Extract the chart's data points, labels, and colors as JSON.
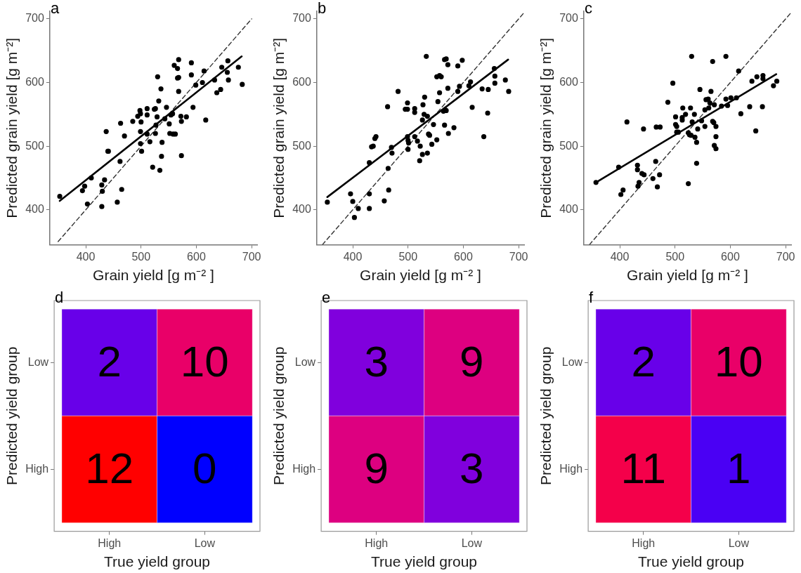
{
  "chart_data": [
    {
      "type": "scatter",
      "title": "a",
      "xlabel": "Grain yield [g m⁻² ]",
      "ylabel": "Predicted grain yield [g m⁻²]",
      "xlim": [
        335,
        710
      ],
      "ylim": [
        345,
        712
      ],
      "xticks": [
        400,
        500,
        600,
        700
      ],
      "yticks": [
        400,
        500,
        600,
        700
      ],
      "series": [
        {
          "type": "scatter",
          "color": "#000000",
          "marker": "circle",
          "x": [
            353,
            394,
            398,
            403,
            410,
            429,
            430,
            429,
            434,
            437,
            440,
            441,
            457,
            462,
            465,
            463,
            470,
            485,
            494,
            498,
            499,
            500,
            499,
            499,
            501,
            511,
            511,
            511,
            516,
            521,
            524,
            526,
            526,
            529,
            527,
            530,
            532,
            534,
            536,
            537,
            538,
            543,
            546,
            551,
            552,
            554,
            558,
            557,
            562,
            560,
            566,
            568,
            568,
            566,
            568,
            572,
            573,
            573,
            582,
            591,
            591,
            594,
            599,
            611,
            614,
            617,
            633,
            637,
            644,
            646,
            656,
            657,
            658,
            676,
            683
          ],
          "values": [
            421,
            430,
            437,
            409,
            450,
            405,
            429,
            439,
            447,
            523,
            492,
            492,
            412,
            476,
            432,
            536,
            516,
            539,
            547,
            556,
            551,
            538,
            523,
            504,
            492,
            559,
            549,
            519,
            507,
            467,
            558,
            559,
            520,
            546,
            533,
            609,
            571,
            462,
            590,
            484,
            506,
            543,
            561,
            535,
            520,
            549,
            519,
            551,
            519,
            627,
            622,
            636,
            608,
            607,
            586,
            547,
            539,
            485,
            546,
            631,
            612,
            561,
            596,
            600,
            618,
            541,
            604,
            584,
            589,
            624,
            616,
            634,
            604,
            624,
            597
          ]
        },
        {
          "type": "line",
          "color": "#000000",
          "line_style": "solid",
          "x": [
            353,
            682
          ],
          "values": [
            414,
            641
          ]
        },
        {
          "type": "line",
          "color": "#333333",
          "line_style": "dashed",
          "x": [
            350,
            700
          ],
          "values": [
            350,
            700
          ]
        }
      ]
    },
    {
      "type": "scatter",
      "title": "b",
      "xlabel": "Grain yield [g m⁻² ]",
      "ylabel": "Predicted grain yield [g m⁻²]",
      "xlim": [
        335,
        710
      ],
      "ylim": [
        345,
        712
      ],
      "xticks": [
        400,
        500,
        600,
        700
      ],
      "yticks": [
        400,
        500,
        600,
        700
      ],
      "series": [
        {
          "type": "scatter",
          "color": "#000000",
          "marker": "circle",
          "x": [
            354,
            396,
            400,
            403,
            410,
            430,
            430,
            430,
            434,
            437,
            440,
            442,
            457,
            463,
            464,
            465,
            470,
            471,
            482,
            495,
            499,
            499,
            499,
            500,
            500,
            501,
            512,
            512,
            512,
            517,
            522,
            521,
            526,
            526,
            527,
            529,
            530,
            533,
            535,
            535,
            537,
            539,
            543,
            546,
            552,
            552,
            554,
            557,
            560,
            557,
            564,
            567,
            566,
            569,
            566,
            569,
            572,
            572,
            573,
            583,
            590,
            590,
            593,
            598,
            610,
            613,
            616,
            634,
            637,
            644,
            645,
            656,
            657,
            657,
            676,
            682
          ],
          "values": [
            412,
            425,
            413,
            388,
            402,
            425,
            402,
            474,
            499,
            500,
            512,
            515,
            414,
            562,
            465,
            431,
            498,
            489,
            586,
            558,
            568,
            558,
            515,
            509,
            495,
            505,
            559,
            553,
            515,
            508,
            500,
            477,
            541,
            487,
            565,
            550,
            577,
            641,
            489,
            547,
            519,
            517,
            503,
            534,
            510,
            609,
            570,
            611,
            609,
            584,
            555,
            557,
            533,
            556,
            636,
            637,
            628,
            591,
            520,
            529,
            626,
            586,
            594,
            635,
            595,
            601,
            561,
            590,
            515,
            552,
            589,
            622,
            610,
            599,
            604,
            586
          ]
        },
        {
          "type": "line",
          "color": "#000000",
          "line_style": "solid",
          "x": [
            354,
            681
          ],
          "values": [
            420,
            636
          ]
        },
        {
          "type": "line",
          "color": "#333333",
          "line_style": "dashed",
          "x": [
            345,
            710
          ],
          "values": [
            345,
            710
          ]
        }
      ]
    },
    {
      "type": "scatter",
      "title": "c",
      "xlabel": "Grain yield [g m⁻² ]",
      "ylabel": "Predicted grain yield [g m⁻²]",
      "xlim": [
        335,
        710
      ],
      "ylim": [
        345,
        712
      ],
      "xticks": [
        400,
        500,
        600,
        700
      ],
      "yticks": [
        400,
        500,
        600,
        700
      ],
      "series": [
        {
          "type": "scatter",
          "color": "#000000",
          "marker": "circle",
          "x": [
            357,
            398,
            402,
            406,
            413,
            432,
            432,
            433,
            435,
            440,
            444,
            443,
            460,
            465,
            468,
            472,
            466,
            473,
            487,
            496,
            501,
            501,
            503,
            503,
            506,
            513,
            513,
            514,
            519,
            524,
            524,
            526,
            528,
            529,
            530,
            531,
            535,
            536,
            539,
            539,
            541,
            545,
            548,
            554,
            554,
            556,
            560,
            561,
            563,
            565,
            568,
            568,
            570,
            571,
            574,
            574,
            571,
            574,
            584,
            592,
            592,
            595,
            601,
            611,
            615,
            619,
            635,
            639,
            646,
            648,
            658,
            659,
            659,
            678,
            684
          ],
          "values": [
            443,
            467,
            424,
            431,
            538,
            470,
            463,
            437,
            443,
            457,
            455,
            527,
            449,
            476,
            436,
            455,
            530,
            530,
            569,
            599,
            546,
            534,
            531,
            522,
            522,
            541,
            545,
            560,
            550,
            441,
            521,
            518,
            560,
            517,
            641,
            538,
            550,
            514,
            506,
            473,
            527,
            589,
            540,
            531,
            557,
            573,
            574,
            560,
            568,
            586,
            633,
            539,
            537,
            565,
            531,
            515,
            501,
            496,
            563,
            641,
            574,
            564,
            576,
            576,
            618,
            551,
            562,
            602,
            524,
            609,
            562,
            611,
            606,
            595,
            602
          ]
        },
        {
          "type": "line",
          "color": "#000000",
          "line_style": "solid",
          "x": [
            357,
            683
          ],
          "values": [
            443,
            613
          ]
        },
        {
          "type": "line",
          "color": "#333333",
          "line_style": "dashed",
          "x": [
            345,
            710
          ],
          "values": [
            345,
            710
          ]
        }
      ]
    },
    {
      "type": "heatmap",
      "title": "d",
      "xlabel": "True yield group",
      "ylabel": "Predicted yield group",
      "categories": [
        "High",
        "Low"
      ],
      "y_categories": [
        "Low",
        "High"
      ],
      "cells": [
        [
          2,
          10
        ],
        [
          12,
          0
        ]
      ],
      "data_labels": true
    },
    {
      "type": "heatmap",
      "title": "e",
      "xlabel": "True yield group",
      "ylabel": "Predicted yield group",
      "categories": [
        "High",
        "Low"
      ],
      "y_categories": [
        "Low",
        "High"
      ],
      "cells": [
        [
          3,
          9
        ],
        [
          9,
          3
        ]
      ],
      "data_labels": true
    },
    {
      "type": "heatmap",
      "title": "f",
      "xlabel": "True yield group",
      "ylabel": "Predicted yield group",
      "categories": [
        "High",
        "Low"
      ],
      "y_categories": [
        "Low",
        "High"
      ],
      "cells": [
        [
          2,
          10
        ],
        [
          11,
          1
        ]
      ],
      "data_labels": true
    }
  ]
}
